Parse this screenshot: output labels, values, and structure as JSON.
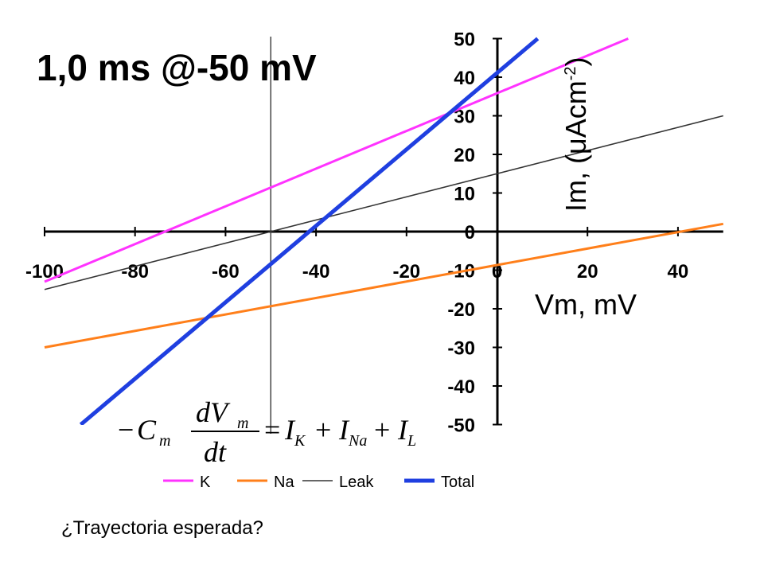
{
  "slide": {
    "title": "1,0 ms @-50 mV",
    "question": "¿Trayectoria esperada?",
    "equation": {
      "lhs_sign": "−",
      "cm": "C",
      "cm_sub": "m",
      "d_top": "dV",
      "v_sub": "m",
      "d_bottom": "dt",
      "equals": "=",
      "ik": "I",
      "ik_sub": "K",
      "plus1": "+",
      "ina": "I",
      "ina_sub": "Na",
      "plus2": "+",
      "il": "I",
      "il_sub": "L"
    }
  },
  "chart_data": {
    "type": "line",
    "xlabel": "Vm, mV",
    "ylabel_main": "Im, (μAcm",
    "ylabel_sup": "-2",
    "ylabel_close": ")",
    "xlim": [
      -100,
      50
    ],
    "ylim": [
      -50,
      50
    ],
    "xticks": [
      -100,
      -80,
      -60,
      -40,
      -20,
      0,
      20,
      40
    ],
    "yticks": [
      -50,
      -40,
      -30,
      -20,
      -10,
      0,
      10,
      20,
      30,
      40,
      50
    ],
    "vertical_marker_x": -50,
    "grid": false,
    "legend_position": "bottom",
    "series": [
      {
        "name": "K",
        "color": "#ff33ff",
        "stroke_width": 3,
        "x": [
          -100,
          29
        ],
        "y": [
          -13,
          50
        ]
      },
      {
        "name": "Na",
        "color": "#ff7f1a",
        "stroke_width": 3,
        "x": [
          -100,
          50
        ],
        "y": [
          -30,
          2
        ]
      },
      {
        "name": "Leak",
        "color": "#333333",
        "stroke_width": 1.5,
        "x": [
          -100,
          50
        ],
        "y": [
          -15,
          30
        ]
      },
      {
        "name": "Total",
        "color": "#1f3fe0",
        "stroke_width": 5,
        "x": [
          -92,
          9
        ],
        "y": [
          -50,
          50
        ]
      }
    ]
  }
}
